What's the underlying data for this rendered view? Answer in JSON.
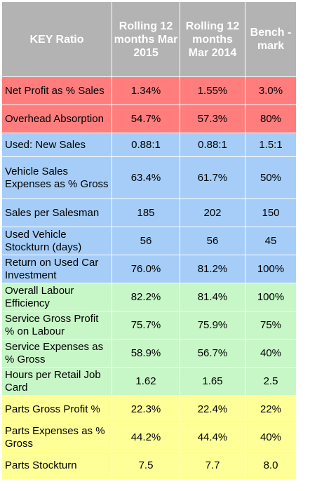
{
  "header": {
    "col1": "KEY Ratio",
    "col2": "Rolling 12 months Mar 2015",
    "col3": "Rolling 12 months Mar 2014",
    "col4": "Bench -mark"
  },
  "rows": [
    {
      "label": "Net Profit as % Sales",
      "v2015": "1.34%",
      "v2014": "1.55%",
      "bench": "3.0%"
    },
    {
      "label": "Overhead Absorption",
      "v2015": "54.7%",
      "v2014": "57.3%",
      "bench": "80%"
    },
    {
      "label": "Used: New Sales",
      "v2015": "0.88:1",
      "v2014": "0.88:1",
      "bench": "1.5:1"
    },
    {
      "label": "Vehicle Sales Expenses as % Gross",
      "v2015": "63.4%",
      "v2014": "61.7%",
      "bench": "50%"
    },
    {
      "label": "Sales per Salesman",
      "v2015": "185",
      "v2014": "202",
      "bench": "150"
    },
    {
      "label": "Used Vehicle Stockturn (days)",
      "v2015": "56",
      "v2014": "56",
      "bench": "45"
    },
    {
      "label": "Return on Used Car Investment",
      "v2015": "76.0%",
      "v2014": "81.2%",
      "bench": "100%"
    },
    {
      "label": "Overall Labour Efficiency",
      "v2015": "82.2%",
      "v2014": "81.4%",
      "bench": "100%"
    },
    {
      "label": "Service Gross Profit % on Labour",
      "v2015": "75.7%",
      "v2014": "75.9%",
      "bench": "75%"
    },
    {
      "label": "Service Expenses as % Gross",
      "v2015": "58.9%",
      "v2014": "56.7%",
      "bench": "40%"
    },
    {
      "label": "Hours per Retail Job Card",
      "v2015": "1.62",
      "v2014": "1.65",
      "bench": "2.5"
    },
    {
      "label": "Parts Gross Profit %",
      "v2015": "22.3%",
      "v2014": "22.4%",
      "bench": "22%"
    },
    {
      "label": "Parts Expenses as % Gross",
      "v2015": "44.2%",
      "v2014": "44.4%",
      "bench": "40%"
    },
    {
      "label": "Parts Stockturn",
      "v2015": "7.5",
      "v2014": "7.7",
      "bench": "8.0"
    }
  ],
  "colors": {
    "header": "#b3b3b3",
    "red": "#ff7d7d",
    "blue": "#a5cdf7",
    "green": "#c7f6c7",
    "yellow": "#ffff98"
  }
}
